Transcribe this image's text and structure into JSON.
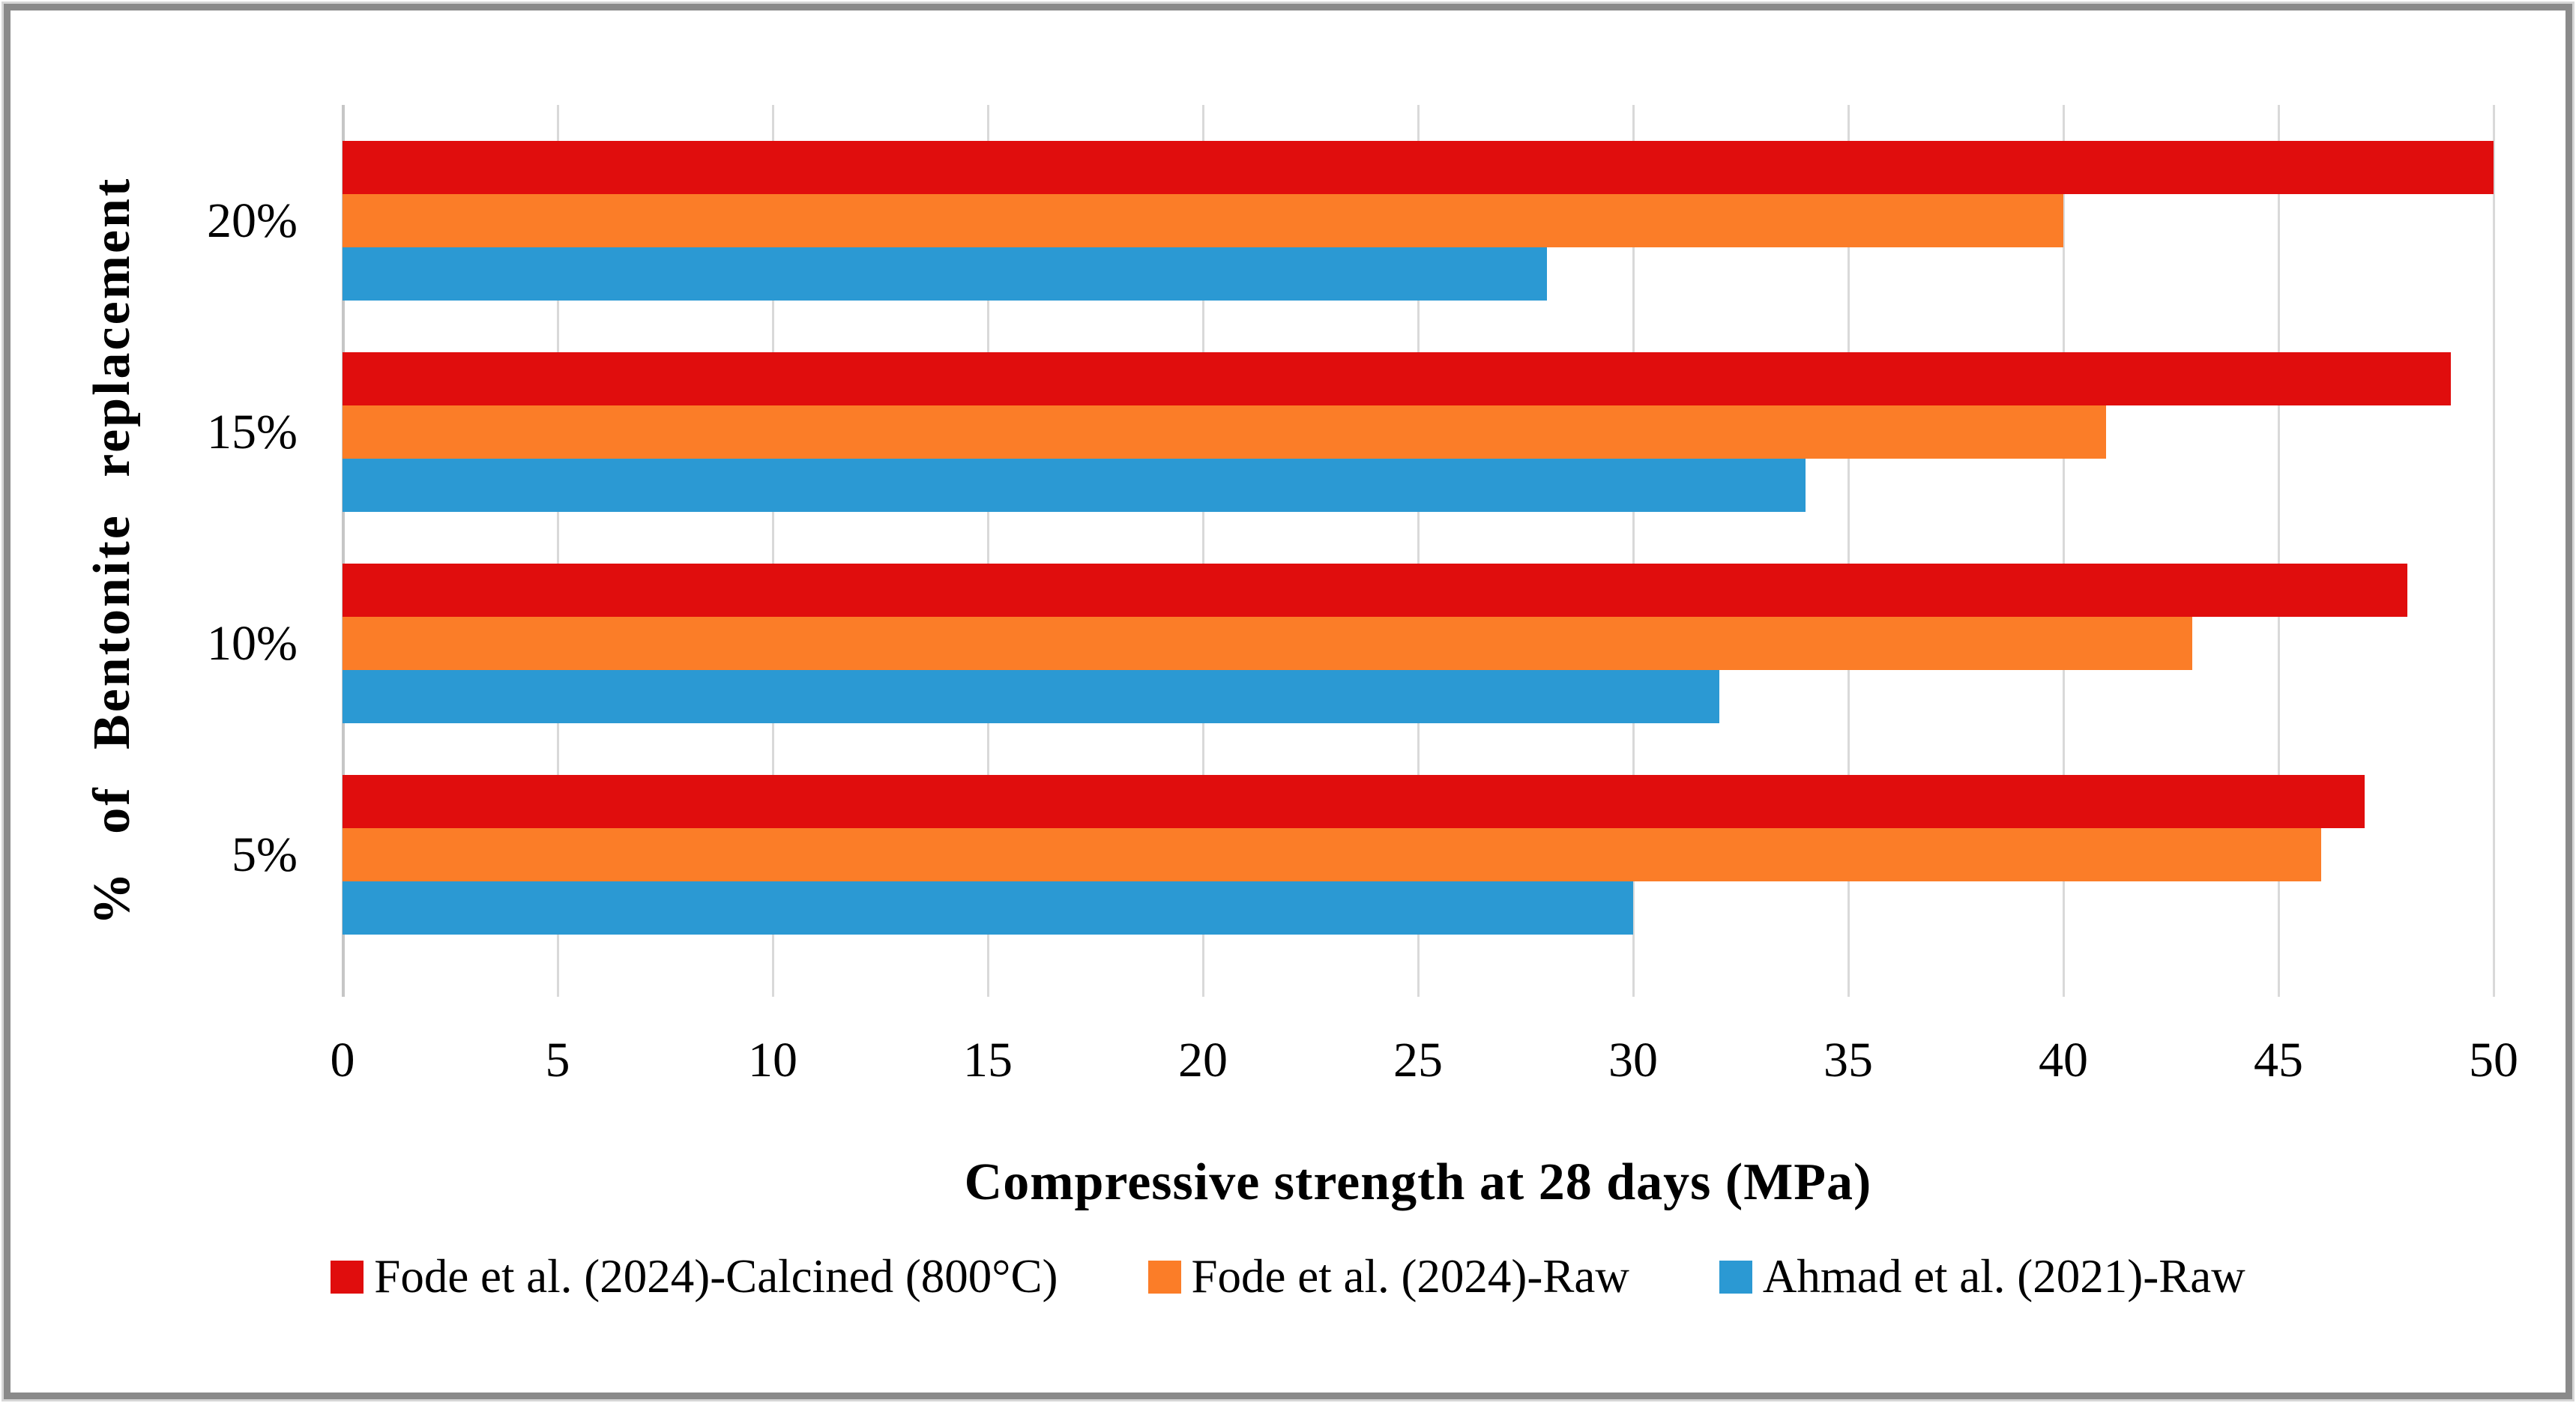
{
  "frame": {
    "border_color": "#8a8a8a",
    "background": "#ffffff"
  },
  "chart_data": {
    "type": "bar",
    "orientation": "horizontal",
    "title": "",
    "xlabel": "Compressive strength at 28 days (MPa)",
    "ylabel": "% of Bentonite replacement",
    "category_axis_direction": "top-to-bottom",
    "categories": [
      "20%",
      "15%",
      "10%",
      "5%"
    ],
    "series": [
      {
        "name": "Fode et al. (2024)-Calcined (800°C)",
        "color": "#e00d0d",
        "values": [
          50,
          49,
          48,
          47
        ]
      },
      {
        "name": "Fode et al. (2024)-Raw",
        "color": "#fb7d28",
        "values": [
          40,
          41,
          43,
          46
        ]
      },
      {
        "name": "Ahmad et al. (2021)-Raw",
        "color": "#2b99d3",
        "values": [
          28,
          34,
          32,
          30
        ]
      }
    ],
    "xlim": [
      0,
      50
    ],
    "xticks": [
      0,
      5,
      10,
      15,
      20,
      25,
      30,
      35,
      40,
      45,
      50
    ],
    "grid": true,
    "gridline_color": "#d9d9d9",
    "legend_position": "bottom"
  }
}
